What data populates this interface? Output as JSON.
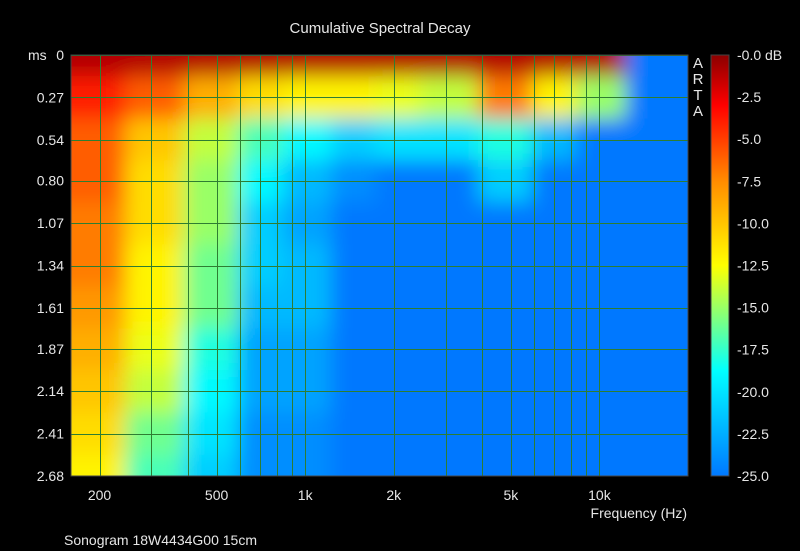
{
  "chart_data": {
    "type": "heatmap",
    "title": "Cumulative Spectral Decay",
    "footer": "Sonogram 18W4434G00 15cm",
    "watermark": "ARTA",
    "xlabel": "Frequency (Hz)",
    "x_scale": "log",
    "xlim": [
      160,
      20000
    ],
    "x_ticks": [
      200,
      500,
      1000,
      2000,
      5000,
      10000
    ],
    "x_tick_labels": [
      "200",
      "500",
      "1k",
      "2k",
      "5k",
      "10k"
    ],
    "y_unit_label": "ms",
    "ylim": [
      0,
      2.68
    ],
    "y_ticks": [
      0,
      0.27,
      0.54,
      0.8,
      1.07,
      1.34,
      1.61,
      1.87,
      2.14,
      2.41,
      2.68
    ],
    "y_tick_labels": [
      "0",
      "0.27",
      "0.54",
      "0.80",
      "1.07",
      "1.34",
      "1.61",
      "1.87",
      "2.14",
      "2.41",
      "2.68"
    ],
    "colorbar": {
      "unit": "dB",
      "range": [
        -25,
        0
      ],
      "ticks": [
        0,
        -2.5,
        -5,
        -7.5,
        -10,
        -12.5,
        -15,
        -17.5,
        -20,
        -22.5,
        -25
      ],
      "tick_labels": [
        "-0.0 dB",
        "-2.5",
        "-5.0",
        "-7.5",
        "-10.0",
        "-12.5",
        "-15.0",
        "-17.5",
        "-20.0",
        "-22.5",
        "-25.0"
      ],
      "colormap": [
        "#8b0000",
        "#ff0000",
        "#ff8c00",
        "#ffff00",
        "#00ffff",
        "#0078ff"
      ]
    },
    "grid": true,
    "grid_color": "#2e7d32",
    "decay_floor_db": -25,
    "decay_cells": {
      "columns_hz": [
        200,
        300,
        500,
        700,
        1000,
        1500,
        2000,
        3000,
        5000,
        7000,
        10000,
        15000
      ],
      "rows_ms": [
        0,
        0.27,
        0.54,
        0.8,
        1.07,
        1.34,
        1.61,
        1.87,
        2.14,
        2.41,
        2.68
      ],
      "db": [
        [
          -1,
          -1,
          -1,
          -1,
          -1,
          -1,
          -1,
          -1,
          -1,
          -1,
          -1,
          -25
        ],
        [
          -4,
          -6,
          -9,
          -11,
          -12,
          -12,
          -13,
          -14,
          -7,
          -12,
          -15,
          -25
        ],
        [
          -6,
          -10,
          -14,
          -17,
          -19,
          -21,
          -20,
          -20,
          -18,
          -22,
          -25,
          -25
        ],
        [
          -6,
          -11,
          -15,
          -19,
          -22,
          -24,
          -25,
          -25,
          -21,
          -25,
          -25,
          -25
        ],
        [
          -7,
          -11,
          -15,
          -21,
          -23,
          -25,
          -25,
          -25,
          -25,
          -25,
          -25,
          -25
        ],
        [
          -7,
          -12,
          -16,
          -21,
          -22,
          -25,
          -25,
          -25,
          -25,
          -25,
          -25,
          -25
        ],
        [
          -8,
          -12,
          -16,
          -22,
          -22,
          -25,
          -25,
          -25,
          -25,
          -25,
          -25,
          -25
        ],
        [
          -9,
          -13,
          -18,
          -23,
          -23,
          -25,
          -25,
          -25,
          -25,
          -25,
          -25,
          -25
        ],
        [
          -10,
          -14,
          -19,
          -23,
          -23,
          -25,
          -25,
          -25,
          -25,
          -25,
          -25,
          -25
        ],
        [
          -11,
          -16,
          -20,
          -24,
          -24,
          -25,
          -25,
          -25,
          -25,
          -25,
          -25,
          -25
        ],
        [
          -12,
          -17,
          -21,
          -24,
          -24,
          -25,
          -25,
          -25,
          -25,
          -25,
          -25,
          -25
        ]
      ]
    }
  }
}
